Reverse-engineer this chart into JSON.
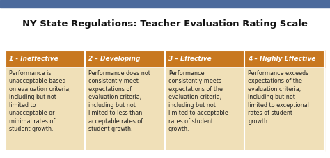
{
  "title": "NY State Regulations: Teacher Evaluation Rating Scale",
  "title_fontsize": 9.5,
  "title_fontweight": "bold",
  "top_bar_color": "#4c6a9c",
  "background_color": "#ffffff",
  "header_bg_color": "#c87820",
  "header_text_color": "#ffffff",
  "body_bg_color": "#f0e0b8",
  "grid_color": "#ffffff",
  "columns": [
    "1 - Ineffective",
    "2 – Developing",
    "3 – Effective",
    "4 – Highly Effective"
  ],
  "descriptions": [
    "Performance is\nunacceptable based\non evaluation criteria,\nincluding but not\nlimited to\nunacceptable or\nminimal rates of\nstudent growth.",
    "Performance does not\nconsistently meet\nexpectations of\nevaluation criteria,\nincluding but not\nlimited to less than\nacceptable rates of\nstudent growth.",
    "Performance\nconsistently meets\nexpectations of the\nevaluation criteria,\nincluding but not\nlimited to acceptable\nrates of student\ngrowth.",
    "Performance exceeds\nexpectations of the\nevaluation criteria,\nincluding but not\nlimited to exceptional\nrates of student\ngrowth."
  ],
  "text_color": "#222222",
  "header_fontsize": 6.5,
  "body_fontsize": 5.8,
  "title_color": "#111111"
}
